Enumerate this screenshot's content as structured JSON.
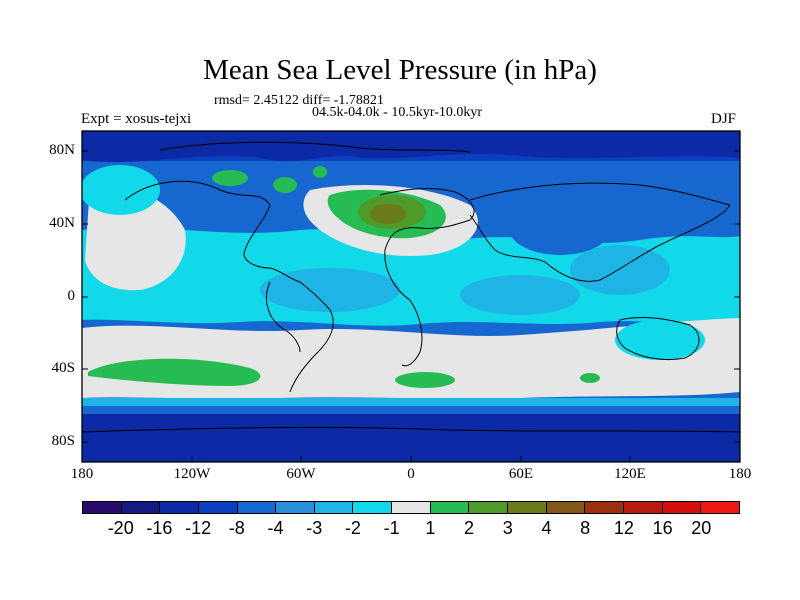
{
  "header": {
    "title": "Mean Sea Level Pressure (in hPa)",
    "stats": "rmsd= 2.45122 diff= -1.78821",
    "period": "04.5k-04.0k - 10.5kyr-10.0kyr",
    "experiment": "Expt = xosus-tejxi",
    "season": "DJF"
  },
  "axes": {
    "y_labels": [
      "80N",
      "40N",
      "0",
      "40S",
      "80S"
    ],
    "x_labels": [
      "180",
      "120W",
      "60W",
      "0",
      "60E",
      "120E",
      "180"
    ]
  },
  "colors": {
    "c_-20": "#2a0a6b",
    "c_-16": "#151a82",
    "c_-12": "#0c2aa6",
    "c_-8": "#0a3fc0",
    "c_-4": "#1667cf",
    "c_-3": "#2a8fdb",
    "c_-2": "#1fb4e6",
    "c_-1": "#12d9ea",
    "c_0": "#e6e6e6",
    "c_1": "#27bc53",
    "c_2": "#4e9a2a",
    "c_3": "#6b7b1c",
    "c_4": "#835816",
    "c_8": "#99300f",
    "c_12": "#b81a0e",
    "c_16": "#d40e0a",
    "c_20": "#ee1a12"
  },
  "legend": {
    "labels": [
      "-20",
      "-16",
      "-12",
      "-8",
      "-4",
      "-3",
      "-2",
      "-1",
      "1",
      "2",
      "3",
      "4",
      "8",
      "12",
      "16",
      "20"
    ]
  }
}
